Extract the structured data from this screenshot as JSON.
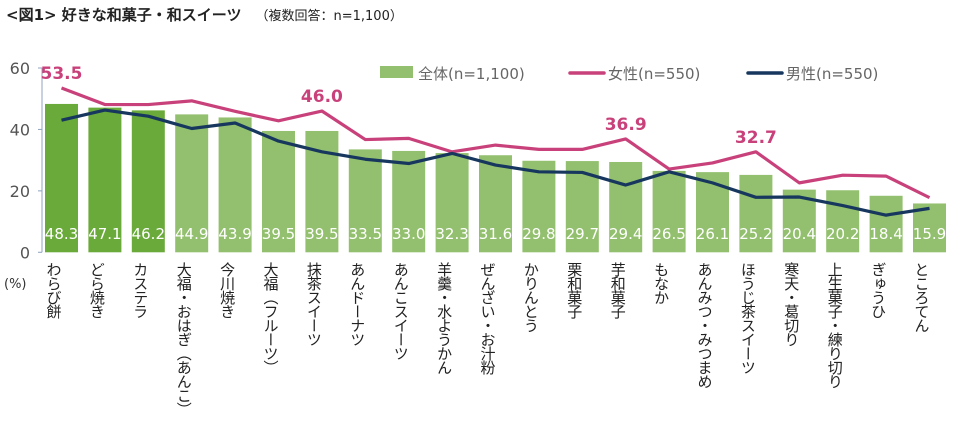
{
  "chart_data": {
    "type": "bar+line",
    "title": "<図1> 好きな和菓子・和スイーツ",
    "subtitle": "（複数回答：n=1,100）",
    "ylabel": "(%)",
    "ylim": [
      0,
      60
    ],
    "yticks": [
      0,
      20,
      40,
      60
    ],
    "grid": false,
    "legend": "top-right",
    "categories": [
      "わらび餅",
      "どら焼き",
      "カステラ",
      "大福・おはぎ（あんこ）",
      "今川焼き",
      "大福（フルーツ）",
      "抹茶スイーツ",
      "あんドーナツ",
      "あんこスイーツ",
      "羊羹・水ようかん",
      "ぜんざい・お汁粉",
      "かりんとう",
      "栗和菓子",
      "芋和菓子",
      "もなか",
      "あんみつ・みつまめ",
      "ほうじ茶スイーツ",
      "寒天・葛切り",
      "上生菓子・練り切り",
      "ぎゅうひ",
      "ところてん"
    ],
    "series": [
      {
        "name": "全体(n=1,100)",
        "type": "bar",
        "color": "#93c06e",
        "highlight_color": "#6aaa3a",
        "values": [
          48.3,
          47.1,
          46.2,
          44.9,
          43.9,
          39.5,
          39.5,
          33.5,
          33.0,
          32.3,
          31.6,
          29.8,
          29.7,
          29.4,
          26.5,
          26.1,
          25.2,
          20.4,
          20.2,
          18.4,
          15.9
        ]
      },
      {
        "name": "女性(n=550)",
        "type": "line",
        "color": "#c9417a",
        "values": [
          53.5,
          48.1,
          48.1,
          49.3,
          45.9,
          42.8,
          46.0,
          36.7,
          37.1,
          32.7,
          34.9,
          33.5,
          33.5,
          36.9,
          27.1,
          29.1,
          32.7,
          22.6,
          25.1,
          24.8,
          17.8
        ],
        "labeled_points": [
          {
            "index": 0,
            "label": "53.5"
          },
          {
            "index": 6,
            "label": "46.0"
          },
          {
            "index": 13,
            "label": "36.9"
          },
          {
            "index": 16,
            "label": "32.7"
          }
        ]
      },
      {
        "name": "男性(n=550)",
        "type": "line",
        "color": "#17375e",
        "values": [
          43.0,
          46.3,
          44.3,
          40.3,
          42.1,
          36.2,
          32.7,
          30.3,
          28.9,
          32.2,
          28.4,
          26.2,
          26.0,
          21.9,
          26.2,
          22.6,
          17.9,
          18.0,
          15.2,
          12.1,
          14.3
        ]
      }
    ]
  }
}
